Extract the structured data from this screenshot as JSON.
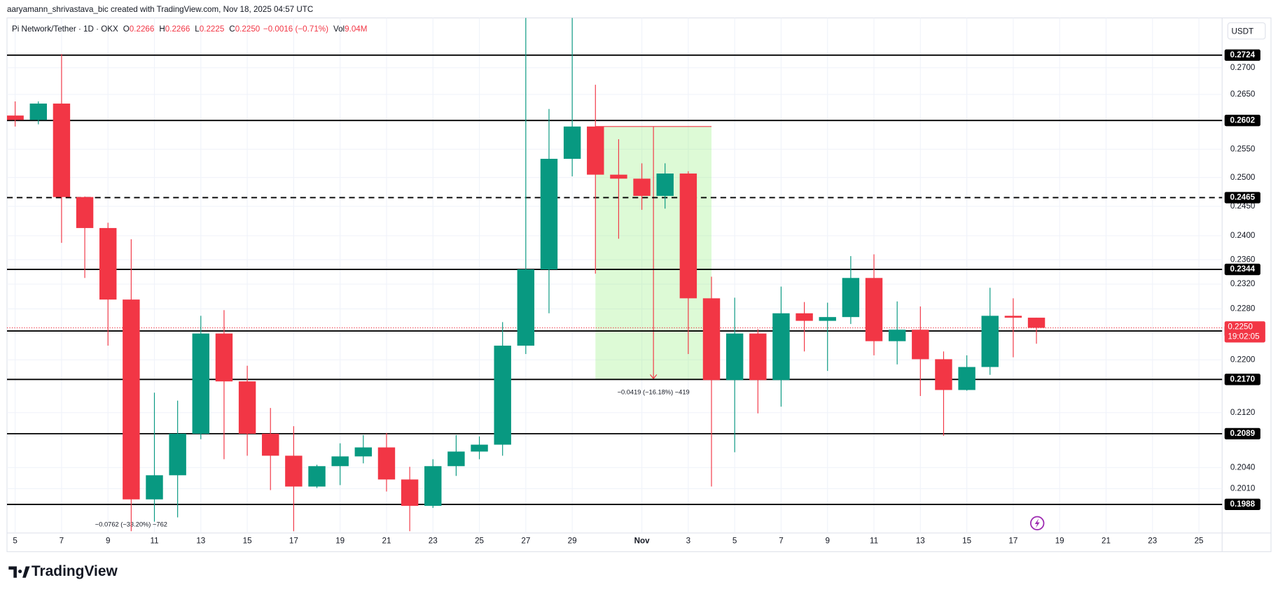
{
  "header": {
    "attribution": "aaryamann_shrivastava_bic created with TradingView.com, Nov 18, 2025 04:57 UTC",
    "symbol": "Pi Network/Tether · 1D · OKX",
    "o_label": "O",
    "o_value": "0.2266",
    "h_label": "H",
    "h_value": "0.2266",
    "l_label": "L",
    "l_value": "0.2225",
    "c_label": "C",
    "c_value": "0.2250",
    "change": "−0.0016 (−0.71%)",
    "vol_label": "Vol",
    "vol_value": "9.04M",
    "currency": "USDT"
  },
  "chart_data": {
    "type": "candlestick",
    "log_scale": true,
    "grid": true,
    "up_color": "#089981",
    "down_color": "#f23645",
    "categories": [
      "5",
      null,
      "7",
      null,
      "9",
      null,
      "11",
      null,
      "13",
      null,
      "15",
      null,
      "17",
      null,
      "19",
      null,
      "21",
      null,
      "23",
      null,
      "25",
      null,
      "27",
      null,
      "29",
      null,
      null,
      "Nov",
      null,
      "3",
      null,
      "5",
      null,
      "7",
      null,
      "9",
      null,
      "11",
      null,
      "13",
      null,
      "15",
      null,
      "17",
      null,
      "19",
      null,
      "21",
      null,
      "23",
      null,
      "25",
      null
    ],
    "open": [
      0.2611,
      0.2603,
      0.2633,
      0.2466,
      0.2413,
      0.2295,
      0.1995,
      0.2029,
      0.2089,
      0.2241,
      0.2167,
      0.2089,
      0.2057,
      0.2013,
      0.2042,
      0.2056,
      0.2069,
      0.2023,
      0.1986,
      0.2042,
      0.2063,
      0.2073,
      0.2222,
      0.2344,
      0.2533,
      0.2591,
      0.2505,
      0.2498,
      0.2468,
      0.2507,
      0.2297,
      0.2169,
      0.2241,
      0.2169,
      0.2273,
      0.2261,
      0.2267,
      0.233,
      0.2229,
      0.2247,
      0.2201,
      0.2154,
      0.2189,
      0.2269,
      0.2266,
      null,
      null,
      null,
      null,
      null,
      null,
      null,
      null
    ],
    "high": [
      0.2637,
      0.2637,
      0.2726,
      0.2467,
      0.2422,
      0.2394,
      0.215,
      0.2138,
      0.2269,
      0.2278,
      0.2191,
      0.2127,
      0.21,
      0.2044,
      0.2075,
      0.2087,
      0.209,
      0.2041,
      0.2052,
      0.2087,
      0.2085,
      0.2259,
      0.28,
      0.2623,
      0.28,
      0.2668,
      0.2568,
      0.2525,
      0.2525,
      0.2511,
      0.2332,
      0.2298,
      0.2248,
      0.2316,
      0.2291,
      0.229,
      0.2366,
      0.2369,
      0.2292,
      0.2284,
      0.2213,
      0.2207,
      0.2314,
      0.2297,
      0.2266,
      null,
      null,
      null,
      null,
      null,
      null,
      null,
      null
    ],
    "low": [
      0.2591,
      0.2595,
      0.2388,
      0.233,
      0.2222,
      0.1951,
      0.1964,
      0.197,
      0.2081,
      0.2052,
      0.2057,
      0.2008,
      0.1951,
      0.2011,
      0.2015,
      0.2046,
      0.2006,
      0.1951,
      0.1983,
      0.2028,
      0.2052,
      0.2057,
      0.2209,
      0.2273,
      0.2502,
      0.2337,
      0.2395,
      0.2444,
      0.2446,
      0.2209,
      0.2013,
      0.2062,
      0.2119,
      0.2129,
      0.2213,
      0.2183,
      0.2256,
      0.2207,
      0.2193,
      0.2145,
      0.2086,
      0.2153,
      0.2177,
      0.2204,
      0.2225,
      null,
      null,
      null,
      null,
      null,
      null,
      null,
      null
    ],
    "close": [
      0.2603,
      0.2633,
      0.2466,
      0.2413,
      0.2295,
      0.1995,
      0.2029,
      0.2089,
      0.2241,
      0.2167,
      0.2089,
      0.2057,
      0.2013,
      0.2042,
      0.2056,
      0.2069,
      0.2023,
      0.1986,
      0.2042,
      0.2063,
      0.2073,
      0.2222,
      0.2344,
      0.2533,
      0.2591,
      0.2505,
      0.2498,
      0.2468,
      0.2507,
      0.2297,
      0.2169,
      0.2241,
      0.2169,
      0.2273,
      0.2261,
      0.2267,
      0.233,
      0.2229,
      0.2247,
      0.2201,
      0.2154,
      0.2189,
      0.2269,
      0.2266,
      0.225,
      null,
      null,
      null,
      null,
      null,
      null,
      null,
      null
    ],
    "ylim": [
      0.1943,
      0.2796
    ],
    "yticks": [
      {
        "value": 0.27,
        "label": "0.2700"
      },
      {
        "value": 0.265,
        "label": "0.2650"
      },
      {
        "value": 0.255,
        "label": "0.2550"
      },
      {
        "value": 0.25,
        "label": "0.2500"
      },
      {
        "value": 0.245,
        "label": "0.2450"
      },
      {
        "value": 0.24,
        "label": "0.2400"
      },
      {
        "value": 0.236,
        "label": "0.2360"
      },
      {
        "value": 0.232,
        "label": "0.2320"
      },
      {
        "value": 0.228,
        "label": "0.2280"
      },
      {
        "value": 0.22,
        "label": "0.2200"
      },
      {
        "value": 0.212,
        "label": "0.2120"
      },
      {
        "value": 0.204,
        "label": "0.2040"
      },
      {
        "value": 0.201,
        "label": "0.2010"
      }
    ],
    "levels": [
      0.2724,
      0.2602,
      0.2344,
      0.2245,
      {
        "value": 0.217,
        "label": "0.2170"
      },
      0.2089,
      0.1988
    ],
    "dashed_levels": [
      0.2465
    ],
    "last_price": {
      "value": 0.225,
      "label": "0.2250"
    },
    "countdown": "19:02:05",
    "annotations": [
      "−0.0419 (−16.18%) −419",
      "−0.0762 (−33.20%) −762"
    ]
  },
  "footer": {
    "logo": "TradingView"
  }
}
